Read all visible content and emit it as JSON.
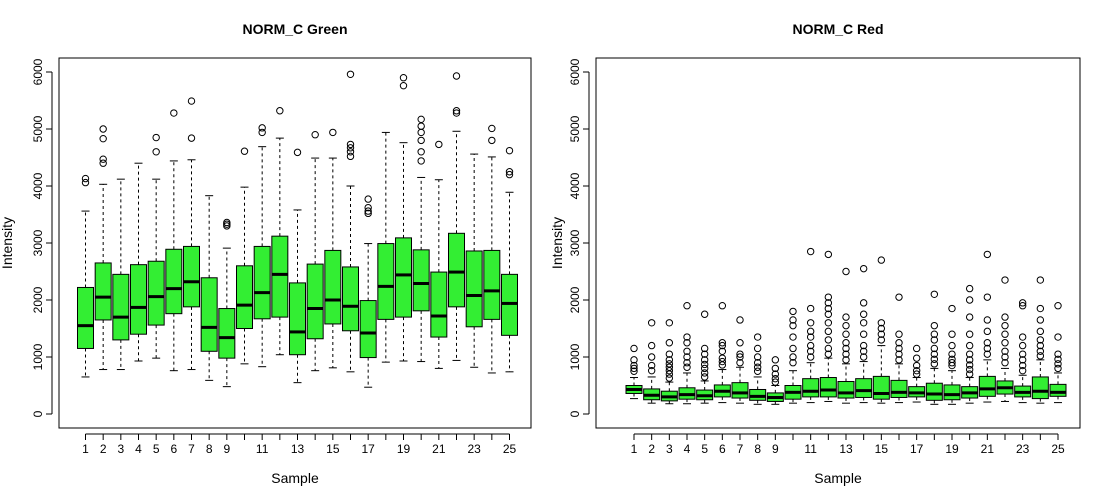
{
  "chart_data": [
    {
      "type": "boxplot",
      "title": "NORM_C Green",
      "xlabel": "Sample",
      "ylabel": "Intensity",
      "ylim": [
        0,
        6200
      ],
      "yticks": [
        0,
        1000,
        2000,
        3000,
        4000,
        5000,
        6000
      ],
      "xtick_labels": [
        "1",
        "2",
        "3",
        "4",
        "5",
        "6",
        "7",
        "8",
        "9",
        "11",
        "13",
        "15",
        "17",
        "19",
        "21",
        "23",
        "25"
      ],
      "xtick_positions": [
        1,
        2,
        3,
        4,
        5,
        6,
        7,
        8,
        9,
        11,
        13,
        15,
        17,
        19,
        21,
        23,
        25
      ],
      "box_fill": "#33ee33",
      "categories": [
        "1",
        "2",
        "3",
        "4",
        "5",
        "6",
        "7",
        "8",
        "9",
        "10",
        "11",
        "12",
        "13",
        "14",
        "15",
        "16",
        "17",
        "18",
        "19",
        "20",
        "21",
        "22",
        "23",
        "24",
        "25"
      ],
      "boxes": [
        {
          "q1": 1150,
          "median": 1550,
          "q3": 2220,
          "wlo": 650,
          "whi": 3560,
          "outliers": [
            4060,
            4130
          ]
        },
        {
          "q1": 1650,
          "median": 2050,
          "q3": 2650,
          "wlo": 780,
          "whi": 4030,
          "outliers": [
            4400,
            4470,
            4830,
            5000
          ]
        },
        {
          "q1": 1300,
          "median": 1700,
          "q3": 2450,
          "wlo": 780,
          "whi": 4120,
          "outliers": []
        },
        {
          "q1": 1400,
          "median": 1870,
          "q3": 2620,
          "wlo": 930,
          "whi": 4400,
          "outliers": []
        },
        {
          "q1": 1560,
          "median": 2060,
          "q3": 2680,
          "wlo": 980,
          "whi": 4120,
          "outliers": [
            4600,
            4850
          ]
        },
        {
          "q1": 1760,
          "median": 2200,
          "q3": 2890,
          "wlo": 760,
          "whi": 4440,
          "outliers": [
            5280
          ]
        },
        {
          "q1": 1880,
          "median": 2320,
          "q3": 2940,
          "wlo": 780,
          "whi": 4460,
          "outliers": [
            4840,
            5490
          ]
        },
        {
          "q1": 1100,
          "median": 1520,
          "q3": 2390,
          "wlo": 590,
          "whi": 3830,
          "outliers": []
        },
        {
          "q1": 980,
          "median": 1340,
          "q3": 1850,
          "wlo": 480,
          "whi": 2910,
          "outliers": [
            3300,
            3330,
            3360
          ]
        },
        {
          "q1": 1500,
          "median": 1910,
          "q3": 2600,
          "wlo": 880,
          "whi": 3980,
          "outliers": [
            4610
          ]
        },
        {
          "q1": 1670,
          "median": 2130,
          "q3": 2940,
          "wlo": 830,
          "whi": 4690,
          "outliers": [
            4940,
            5020
          ]
        },
        {
          "q1": 1700,
          "median": 2450,
          "q3": 3120,
          "wlo": 1040,
          "whi": 4840,
          "outliers": [
            5320
          ]
        },
        {
          "q1": 1040,
          "median": 1440,
          "q3": 2300,
          "wlo": 550,
          "whi": 3580,
          "outliers": [
            4590
          ]
        },
        {
          "q1": 1320,
          "median": 1850,
          "q3": 2630,
          "wlo": 760,
          "whi": 4490,
          "outliers": [
            4900
          ]
        },
        {
          "q1": 1580,
          "median": 2000,
          "q3": 2870,
          "wlo": 810,
          "whi": 4490,
          "outliers": [
            4940
          ]
        },
        {
          "q1": 1460,
          "median": 1890,
          "q3": 2580,
          "wlo": 740,
          "whi": 4000,
          "outliers": [
            4520,
            4600,
            4670,
            4730,
            5960
          ]
        },
        {
          "q1": 990,
          "median": 1420,
          "q3": 1990,
          "wlo": 470,
          "whi": 2990,
          "outliers": [
            3520,
            3560,
            3620,
            3770
          ]
        },
        {
          "q1": 1660,
          "median": 2240,
          "q3": 2990,
          "wlo": 910,
          "whi": 4940,
          "outliers": []
        },
        {
          "q1": 1700,
          "median": 2440,
          "q3": 3090,
          "wlo": 930,
          "whi": 4760,
          "outliers": [
            5760,
            5900
          ]
        },
        {
          "q1": 1810,
          "median": 2290,
          "q3": 2880,
          "wlo": 920,
          "whi": 4150,
          "outliers": [
            4440,
            4600,
            4800,
            4940,
            5050,
            5170
          ]
        },
        {
          "q1": 1350,
          "median": 1720,
          "q3": 2490,
          "wlo": 800,
          "whi": 4110,
          "outliers": [
            4730
          ]
        },
        {
          "q1": 1880,
          "median": 2490,
          "q3": 3170,
          "wlo": 940,
          "whi": 4960,
          "outliers": [
            5280,
            5320,
            5930
          ]
        },
        {
          "q1": 1530,
          "median": 2080,
          "q3": 2860,
          "wlo": 820,
          "whi": 4560,
          "outliers": []
        },
        {
          "q1": 1660,
          "median": 2160,
          "q3": 2870,
          "wlo": 720,
          "whi": 4510,
          "outliers": [
            4800,
            5010
          ]
        },
        {
          "q1": 1380,
          "median": 1940,
          "q3": 2450,
          "wlo": 740,
          "whi": 3890,
          "outliers": [
            4200,
            4250,
            4620
          ]
        }
      ]
    },
    {
      "type": "boxplot",
      "title": "NORM_C Red",
      "xlabel": "Sample",
      "ylabel": "Intensity",
      "ylim": [
        0,
        6200
      ],
      "yticks": [
        0,
        1000,
        2000,
        3000,
        4000,
        5000,
        6000
      ],
      "xtick_labels": [
        "1",
        "2",
        "3",
        "4",
        "5",
        "6",
        "7",
        "8",
        "9",
        "11",
        "13",
        "15",
        "17",
        "19",
        "21",
        "23",
        "25"
      ],
      "xtick_positions": [
        1,
        2,
        3,
        4,
        5,
        6,
        7,
        8,
        9,
        11,
        13,
        15,
        17,
        19,
        21,
        23,
        25
      ],
      "box_fill": "#33ee33",
      "categories": [
        "1",
        "2",
        "3",
        "4",
        "5",
        "6",
        "7",
        "8",
        "9",
        "10",
        "11",
        "12",
        "13",
        "14",
        "15",
        "16",
        "17",
        "18",
        "19",
        "20",
        "21",
        "22",
        "23",
        "24",
        "25"
      ],
      "boxes": [
        {
          "q1": 360,
          "median": 430,
          "q3": 500,
          "wlo": 270,
          "whi": 640,
          "outliers": [
            750,
            800,
            850,
            950,
            1150
          ]
        },
        {
          "q1": 250,
          "median": 330,
          "q3": 440,
          "wlo": 190,
          "whi": 650,
          "outliers": [
            760,
            850,
            1000,
            1200,
            1600
          ]
        },
        {
          "q1": 230,
          "median": 300,
          "q3": 400,
          "wlo": 180,
          "whi": 560,
          "outliers": [
            630,
            700,
            760,
            820,
            880,
            950,
            1050,
            1250,
            1600
          ]
        },
        {
          "q1": 260,
          "median": 340,
          "q3": 460,
          "wlo": 180,
          "whi": 720,
          "outliers": [
            820,
            900,
            1000,
            1100,
            1250,
            1350,
            1900
          ]
        },
        {
          "q1": 250,
          "median": 320,
          "q3": 420,
          "wlo": 190,
          "whi": 580,
          "outliers": [
            650,
            720,
            800,
            870,
            950,
            1050,
            1150,
            1750
          ]
        },
        {
          "q1": 300,
          "median": 400,
          "q3": 510,
          "wlo": 200,
          "whi": 780,
          "outliers": [
            860,
            920,
            980,
            1100,
            1200,
            1250,
            1900
          ]
        },
        {
          "q1": 280,
          "median": 370,
          "q3": 550,
          "wlo": 190,
          "whi": 820,
          "outliers": [
            900,
            1000,
            1050,
            1250,
            1650
          ]
        },
        {
          "q1": 240,
          "median": 310,
          "q3": 430,
          "wlo": 170,
          "whi": 650,
          "outliers": [
            750,
            820,
            900,
            1000,
            1150,
            1350
          ]
        },
        {
          "q1": 220,
          "median": 290,
          "q3": 370,
          "wlo": 170,
          "whi": 500,
          "outliers": [
            560,
            620,
            700,
            800,
            950
          ]
        },
        {
          "q1": 260,
          "median": 380,
          "q3": 500,
          "wlo": 190,
          "whi": 760,
          "outliers": [
            900,
            1000,
            1150,
            1350,
            1550,
            1650,
            1800
          ]
        },
        {
          "q1": 300,
          "median": 400,
          "q3": 620,
          "wlo": 200,
          "whi": 900,
          "outliers": [
            1000,
            1100,
            1200,
            1350,
            1450,
            1600,
            1850,
            2850
          ]
        },
        {
          "q1": 300,
          "median": 420,
          "q3": 640,
          "wlo": 220,
          "whi": 980,
          "outliers": [
            1050,
            1150,
            1300,
            1450,
            1600,
            1750,
            1850,
            1950,
            2050,
            2800
          ]
        },
        {
          "q1": 280,
          "median": 370,
          "q3": 570,
          "wlo": 190,
          "whi": 880,
          "outliers": [
            950,
            1050,
            1150,
            1250,
            1400,
            1550,
            1700,
            2500
          ]
        },
        {
          "q1": 290,
          "median": 410,
          "q3": 620,
          "wlo": 200,
          "whi": 920,
          "outliers": [
            1000,
            1100,
            1200,
            1400,
            1600,
            1750,
            1950,
            2550
          ]
        },
        {
          "q1": 260,
          "median": 360,
          "q3": 660,
          "wlo": 190,
          "whi": 1200,
          "outliers": [
            1300,
            1400,
            1500,
            1600,
            2700
          ]
        },
        {
          "q1": 290,
          "median": 380,
          "q3": 590,
          "wlo": 200,
          "whi": 880,
          "outliers": [
            950,
            1050,
            1150,
            1250,
            1400,
            2050
          ]
        },
        {
          "q1": 300,
          "median": 370,
          "q3": 480,
          "wlo": 210,
          "whi": 640,
          "outliers": [
            700,
            760,
            850,
            980,
            1150
          ]
        },
        {
          "q1": 240,
          "median": 350,
          "q3": 540,
          "wlo": 170,
          "whi": 800,
          "outliers": [
            880,
            960,
            1050,
            1150,
            1300,
            1400,
            1550,
            2100
          ]
        },
        {
          "q1": 250,
          "median": 340,
          "q3": 510,
          "wlo": 170,
          "whi": 760,
          "outliers": [
            850,
            900,
            960,
            1050,
            1200,
            1400,
            1850
          ]
        },
        {
          "q1": 280,
          "median": 370,
          "q3": 480,
          "wlo": 190,
          "whi": 640,
          "outliers": [
            700,
            780,
            860,
            950,
            1050,
            1200,
            1400,
            1700,
            2000,
            2200
          ]
        },
        {
          "q1": 310,
          "median": 440,
          "q3": 660,
          "wlo": 210,
          "whi": 950,
          "outliers": [
            1050,
            1150,
            1250,
            1450,
            1650,
            2050,
            2800
          ]
        },
        {
          "q1": 350,
          "median": 460,
          "q3": 580,
          "wlo": 220,
          "whi": 800,
          "outliers": [
            900,
            1000,
            1100,
            1250,
            1400,
            1550,
            1700,
            2350
          ]
        },
        {
          "q1": 300,
          "median": 380,
          "q3": 490,
          "wlo": 200,
          "whi": 680,
          "outliers": [
            760,
            850,
            950,
            1050,
            1200,
            1350,
            1900,
            1950
          ]
        },
        {
          "q1": 270,
          "median": 400,
          "q3": 650,
          "wlo": 190,
          "whi": 950,
          "outliers": [
            1020,
            1100,
            1200,
            1300,
            1450,
            1650,
            1850,
            2350
          ]
        },
        {
          "q1": 310,
          "median": 380,
          "q3": 520,
          "wlo": 200,
          "whi": 720,
          "outliers": [
            800,
            880,
            960,
            1050,
            1350,
            1900
          ]
        }
      ]
    }
  ]
}
